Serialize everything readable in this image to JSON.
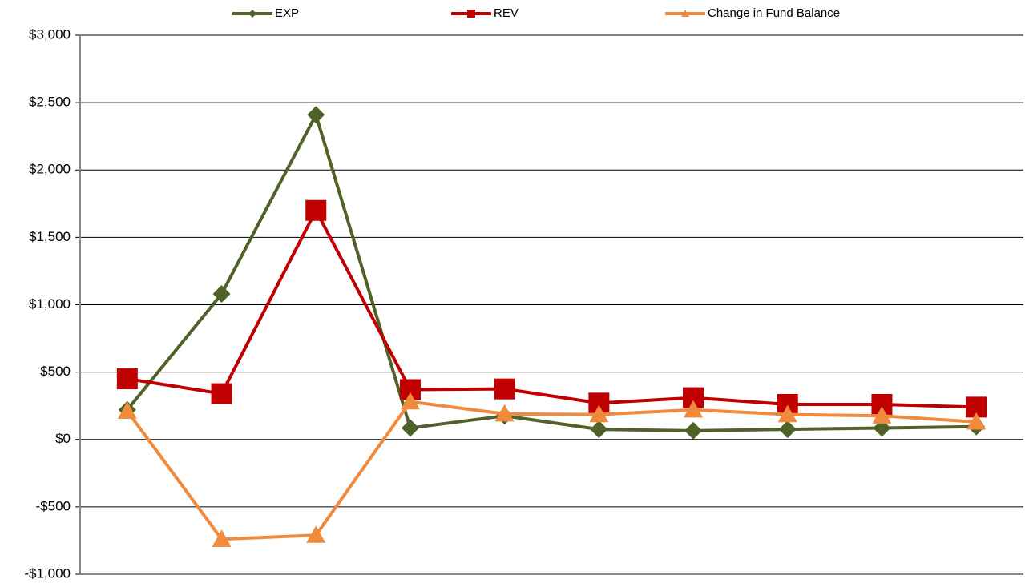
{
  "chart_data": {
    "type": "line",
    "categories": [
      null,
      null,
      null,
      null,
      null,
      null,
      null,
      null,
      null,
      null
    ],
    "series": [
      {
        "name": "EXP",
        "color": "#4f6228",
        "marker": "diamond",
        "values": [
          220,
          1080,
          2410,
          85,
          175,
          75,
          65,
          75,
          85,
          95
        ]
      },
      {
        "name": "REV",
        "color": "#c00000",
        "marker": "square",
        "values": [
          450,
          340,
          1700,
          370,
          375,
          270,
          310,
          260,
          260,
          240
        ]
      },
      {
        "name": "Change in Fund Balance",
        "color": "#f08a3c",
        "marker": "triangle",
        "values": [
          210,
          -740,
          -710,
          280,
          190,
          185,
          220,
          185,
          175,
          130
        ]
      }
    ],
    "ylim": [
      -1000,
      3000
    ],
    "yticks": [
      {
        "value": -1000,
        "label": "-$1,000"
      },
      {
        "value": -500,
        "label": "-$500"
      },
      {
        "value": 0,
        "label": "$0"
      },
      {
        "value": 500,
        "label": "$500"
      },
      {
        "value": 1000,
        "label": "$1,000"
      },
      {
        "value": 1500,
        "label": "$1,500"
      },
      {
        "value": 2000,
        "label": "$2,000"
      },
      {
        "value": 2500,
        "label": "$2,500"
      },
      {
        "value": 3000,
        "label": "$3,000"
      }
    ],
    "grid": true,
    "legend": "top"
  }
}
